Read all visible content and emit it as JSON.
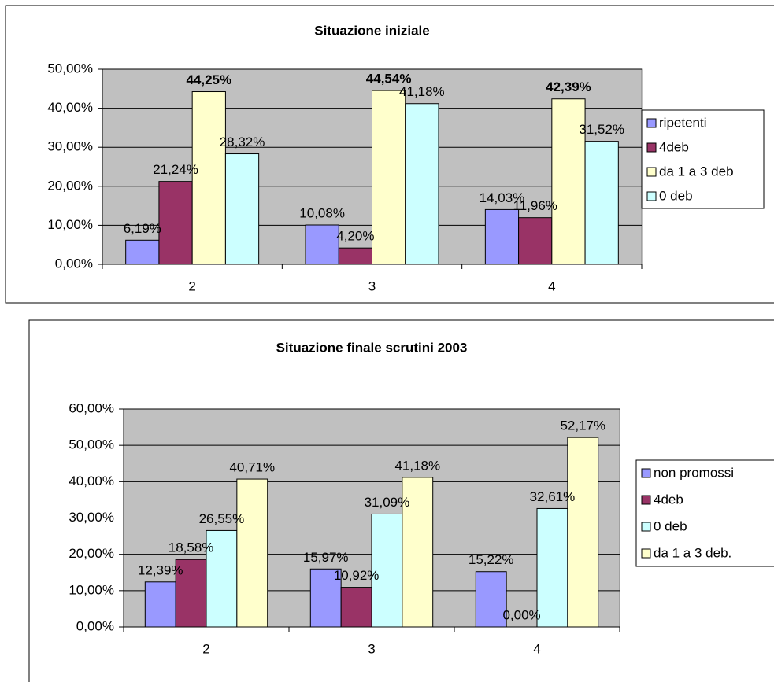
{
  "chart_data": [
    {
      "type": "bar",
      "title": "Situazione iniziale",
      "categories": [
        "2",
        "3",
        "4"
      ],
      "series": [
        {
          "name": "ripetenti",
          "color": "#9999ff",
          "values": [
            6.19,
            10.08,
            14.03
          ],
          "value_labels": [
            "6,19%",
            "10,08%",
            "14,03%"
          ]
        },
        {
          "name": "4deb",
          "color": "#993366",
          "values": [
            21.24,
            4.2,
            11.96
          ],
          "value_labels": [
            "21,24%",
            "4,20%",
            "11,96%"
          ]
        },
        {
          "name": "da 1 a 3 deb",
          "color": "#ffffcc",
          "label_color": "#ffff00",
          "values": [
            44.25,
            44.54,
            42.39
          ],
          "value_labels": [
            "44,25%",
            "44,54%",
            "42,39%"
          ]
        },
        {
          "name": "0 deb",
          "color": "#ccffff",
          "values": [
            28.32,
            41.18,
            31.52
          ],
          "value_labels": [
            "28,32%",
            "41,18%",
            "31,52%"
          ]
        }
      ],
      "ylim": [
        0,
        50
      ],
      "yticks": [
        {
          "value": 0,
          "label": "0,00%"
        },
        {
          "value": 10,
          "label": "10,00%"
        },
        {
          "value": 20,
          "label": "20,00%"
        },
        {
          "value": 30,
          "label": "30,00%"
        },
        {
          "value": 40,
          "label": "40,00%"
        },
        {
          "value": 50,
          "label": "50,00%"
        }
      ],
      "grid": true,
      "legend": "right"
    },
    {
      "type": "bar",
      "title": "Situazione finale scrutini 2003",
      "categories": [
        "2",
        "3",
        "4"
      ],
      "series": [
        {
          "name": "non promossi",
          "color": "#9999ff",
          "values": [
            12.39,
            15.97,
            15.22
          ],
          "value_labels": [
            "12,39%",
            "15,97%",
            "15,22%"
          ]
        },
        {
          "name": "4deb",
          "color": "#993366",
          "values": [
            18.58,
            10.92,
            0.0
          ],
          "value_labels": [
            "18,58%",
            "10,92%",
            "0,00%"
          ]
        },
        {
          "name": "0 deb",
          "color": "#ccffff",
          "values": [
            26.55,
            31.09,
            32.61
          ],
          "value_labels": [
            "26,55%",
            "31,09%",
            "32,61%"
          ]
        },
        {
          "name": "da 1 a 3 deb.",
          "color": "#ffffcc",
          "values": [
            40.71,
            41.18,
            52.17
          ],
          "value_labels": [
            "40,71%",
            "41,18%",
            "52,17%"
          ]
        }
      ],
      "ylim": [
        0,
        60
      ],
      "yticks": [
        {
          "value": 0,
          "label": "0,00%"
        },
        {
          "value": 10,
          "label": "10,00%"
        },
        {
          "value": 20,
          "label": "20,00%"
        },
        {
          "value": 30,
          "label": "30,00%"
        },
        {
          "value": 40,
          "label": "40,00%"
        },
        {
          "value": 50,
          "label": "50,00%"
        },
        {
          "value": 60,
          "label": "60,00%"
        }
      ],
      "grid": true,
      "legend": "right"
    }
  ]
}
